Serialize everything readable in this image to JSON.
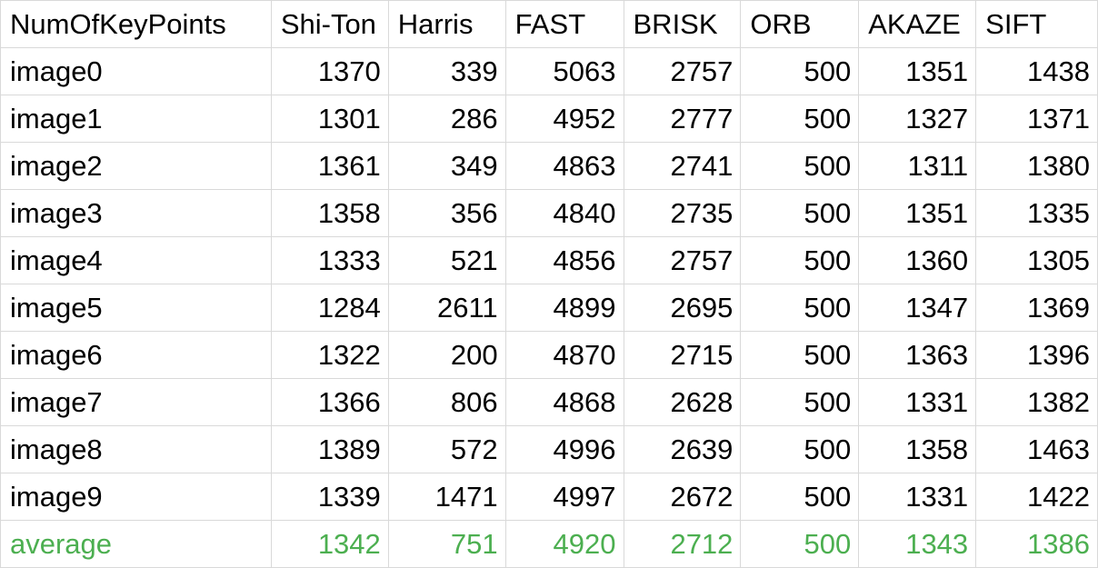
{
  "sheet": {
    "columns": [
      "NumOfKeyPoints",
      "Shi-Ton",
      "Harris",
      "FAST",
      "BRISK",
      "ORB",
      "AKAZE",
      "SIFT"
    ],
    "rows": [
      {
        "label": "image0",
        "values": [
          "1370",
          "339",
          "5063",
          "2757",
          "500",
          "1351",
          "1438"
        ]
      },
      {
        "label": "image1",
        "values": [
          "1301",
          "286",
          "4952",
          "2777",
          "500",
          "1327",
          "1371"
        ]
      },
      {
        "label": "image2",
        "values": [
          "1361",
          "349",
          "4863",
          "2741",
          "500",
          "1311",
          "1380"
        ]
      },
      {
        "label": "image3",
        "values": [
          "1358",
          "356",
          "4840",
          "2735",
          "500",
          "1351",
          "1335"
        ]
      },
      {
        "label": "image4",
        "values": [
          "1333",
          "521",
          "4856",
          "2757",
          "500",
          "1360",
          "1305"
        ]
      },
      {
        "label": "image5",
        "values": [
          "1284",
          "2611",
          "4899",
          "2695",
          "500",
          "1347",
          "1369"
        ]
      },
      {
        "label": "image6",
        "values": [
          "1322",
          "200",
          "4870",
          "2715",
          "500",
          "1363",
          "1396"
        ]
      },
      {
        "label": "image7",
        "values": [
          "1366",
          "806",
          "4868",
          "2628",
          "500",
          "1331",
          "1382"
        ]
      },
      {
        "label": "image8",
        "values": [
          "1389",
          "572",
          "4996",
          "2639",
          "500",
          "1358",
          "1463"
        ]
      },
      {
        "label": "image9",
        "values": [
          "1339",
          "1471",
          "4997",
          "2672",
          "500",
          "1331",
          "1422"
        ]
      }
    ],
    "average": {
      "label": "average",
      "values": [
        "1342",
        "751",
        "4920",
        "2712",
        "500",
        "1343",
        "1386"
      ]
    }
  },
  "colors": {
    "average_text": "#4caf50",
    "gridline": "#d9d9d9"
  }
}
